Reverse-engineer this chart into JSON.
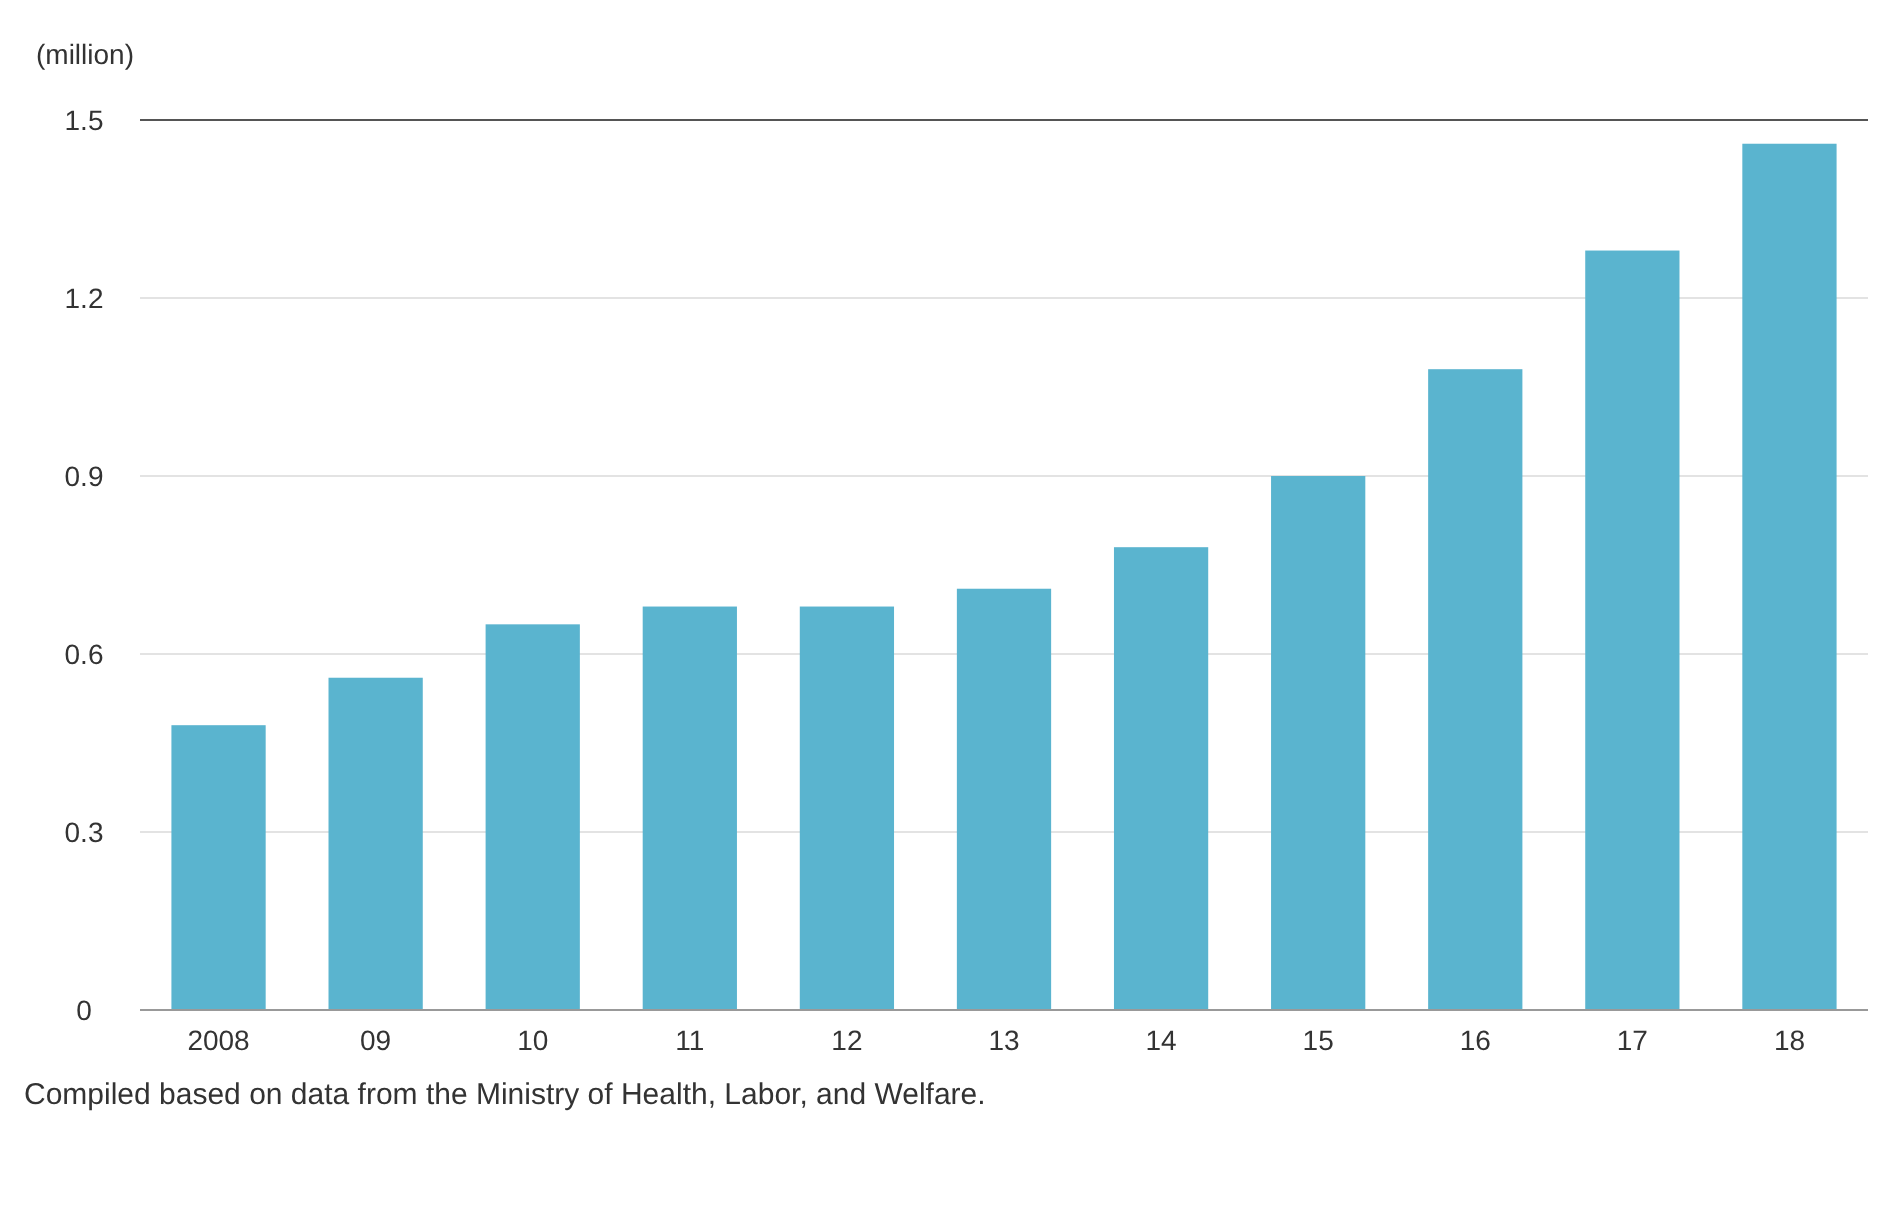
{
  "chart_data": {
    "type": "bar",
    "ylabel": "(million)",
    "categories": [
      "2008",
      "09",
      "10",
      "11",
      "12",
      "13",
      "14",
      "15",
      "16",
      "17",
      "18"
    ],
    "values": [
      0.48,
      0.56,
      0.65,
      0.68,
      0.68,
      0.71,
      0.78,
      0.9,
      1.08,
      1.28,
      1.46
    ],
    "color": "#5ab4cf",
    "ylim": [
      0,
      1.5
    ],
    "yticks": [
      0,
      0.3,
      0.6,
      0.9,
      1.2,
      1.5
    ],
    "grid": "y",
    "annotations": [
      "Compiled based on data from the Ministry of Health, Labor, and Welfare."
    ]
  }
}
